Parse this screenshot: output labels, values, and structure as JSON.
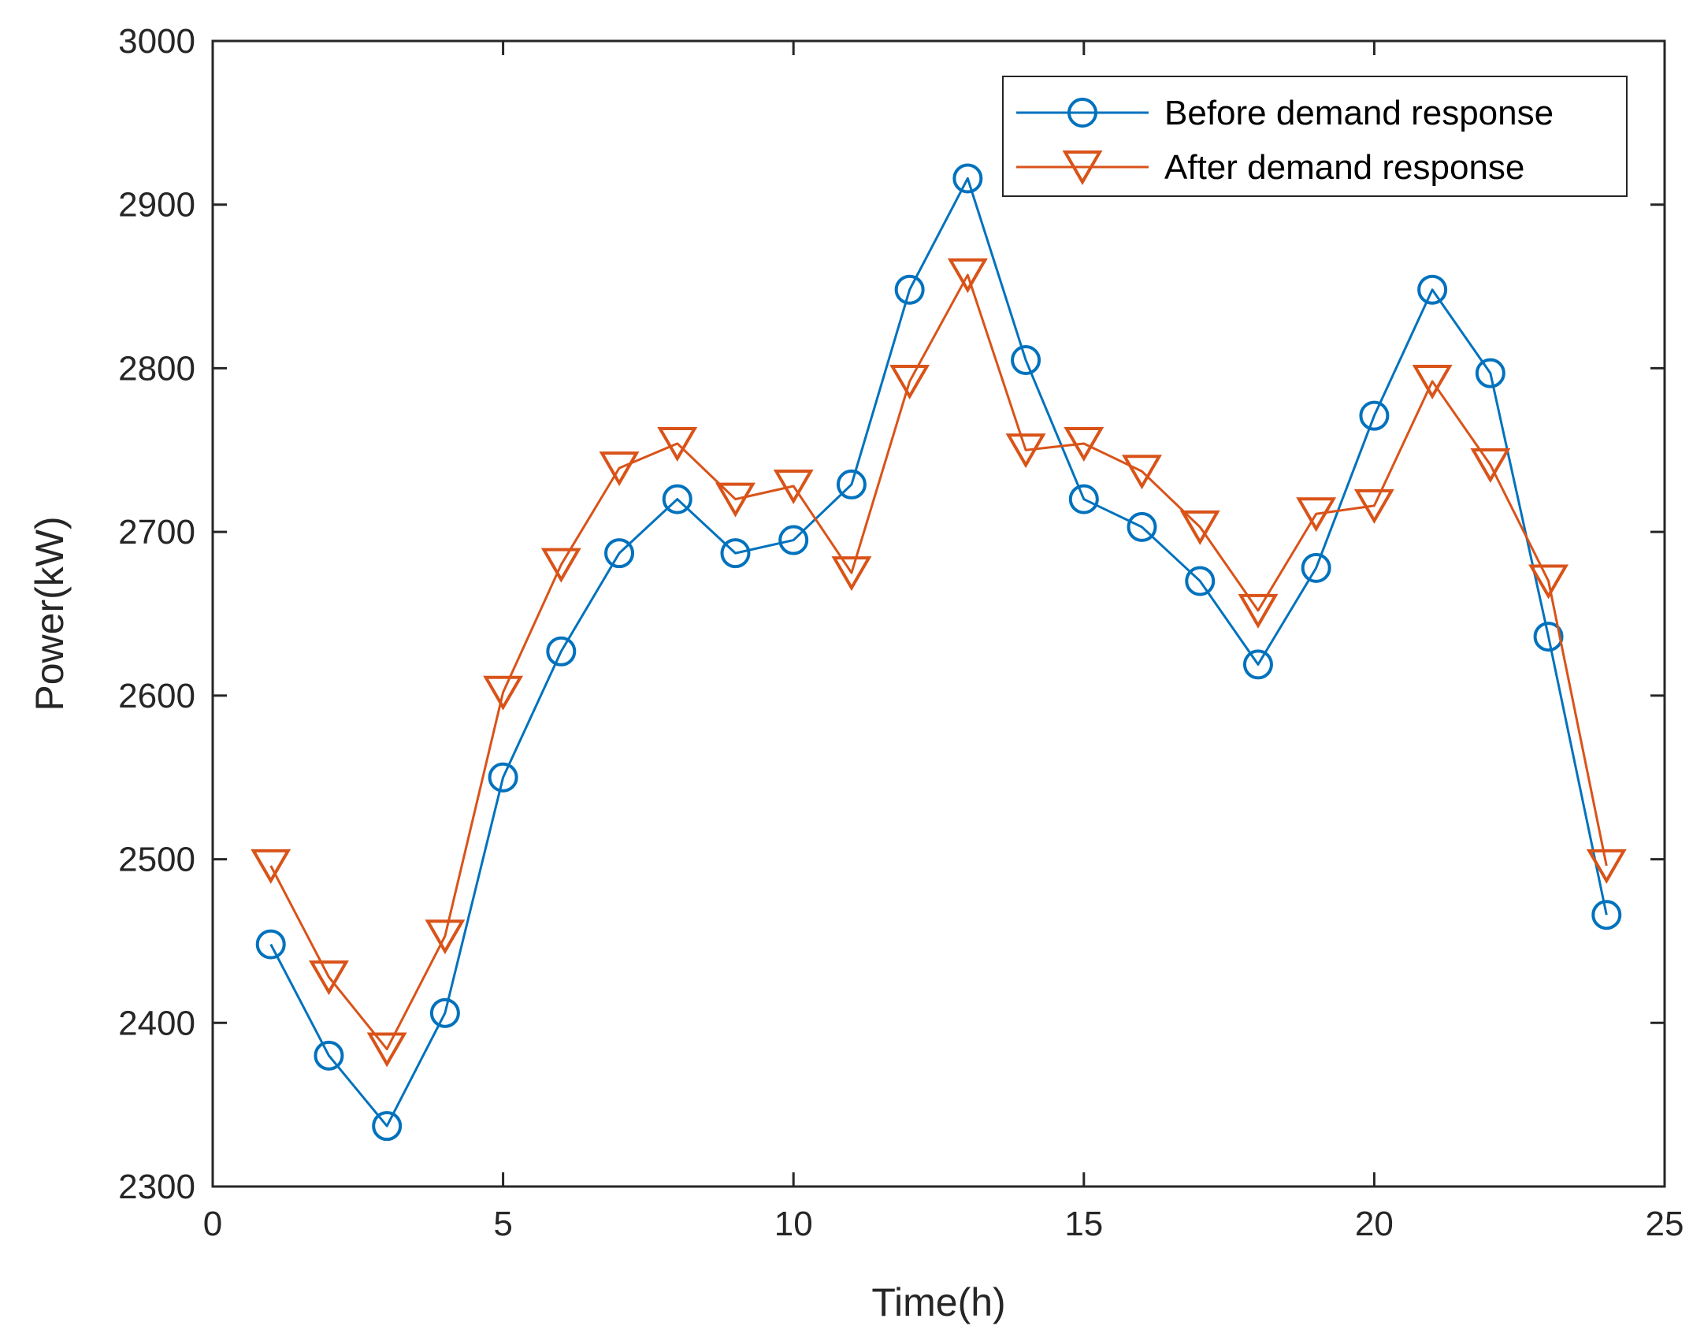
{
  "chart_data": {
    "type": "line",
    "title": "",
    "xlabel": "Time(h)",
    "ylabel": "Power(kW)",
    "xlim": [
      0,
      25
    ],
    "ylim": [
      2300,
      3000
    ],
    "xticks": [
      0,
      5,
      10,
      15,
      20,
      25
    ],
    "yticks": [
      2300,
      2400,
      2500,
      2600,
      2700,
      2800,
      2900,
      3000
    ],
    "grid": false,
    "legend_position": "top-right",
    "x": [
      1,
      2,
      3,
      4,
      5,
      6,
      7,
      8,
      9,
      10,
      11,
      12,
      13,
      14,
      15,
      16,
      17,
      18,
      19,
      20,
      21,
      22,
      23,
      24
    ],
    "series": [
      {
        "name": "Before demand response",
        "color": "#0072BD",
        "marker": "circle",
        "values": [
          2448,
          2380,
          2337,
          2406,
          2550,
          2627,
          2687,
          2720,
          2687,
          2695,
          2729,
          2848,
          2916,
          2805,
          2720,
          2703,
          2670,
          2619,
          2678,
          2771,
          2848,
          2797,
          2636,
          2466
        ]
      },
      {
        "name": "After demand response",
        "color": "#D95319",
        "marker": "triangle-down",
        "values": [
          2496,
          2428,
          2384,
          2453,
          2602,
          2680,
          2739,
          2754,
          2720,
          2728,
          2675,
          2792,
          2857,
          2750,
          2754,
          2737,
          2703,
          2652,
          2711,
          2716,
          2792,
          2741,
          2670,
          2496
        ]
      }
    ]
  }
}
